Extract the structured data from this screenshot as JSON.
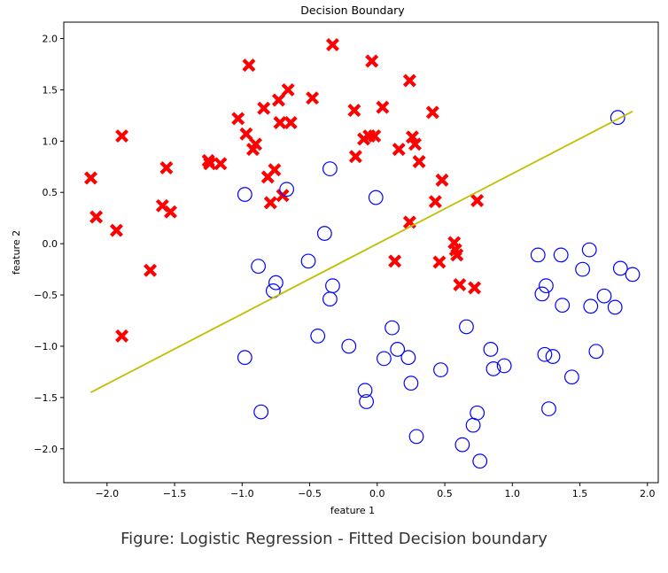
{
  "caption": "Figure: Logistic Regression - Fitted Decision boundary",
  "chart_data": {
    "type": "scatter",
    "title": "Decision Boundary",
    "xlabel": "feature 1",
    "ylabel": "feature 2",
    "xlim": [
      -2.32,
      2.08
    ],
    "ylim": [
      -2.33,
      2.16
    ],
    "xticks": [
      -2.0,
      -1.5,
      -1.0,
      -0.5,
      0.0,
      0.5,
      1.0,
      1.5,
      2.0
    ],
    "yticks": [
      -2.0,
      -1.5,
      -1.0,
      -0.5,
      0.0,
      0.5,
      1.0,
      1.5,
      2.0
    ],
    "xtick_labels": [
      "−2.0",
      "−1.5",
      "−1.0",
      "−0.5",
      "0.0",
      "0.5",
      "1.0",
      "1.5",
      "2.0"
    ],
    "ytick_labels": [
      "−2.0",
      "−1.5",
      "−1.0",
      "−0.5",
      "0.0",
      "0.5",
      "1.0",
      "1.5",
      "2.0"
    ],
    "grid": false,
    "series": [
      {
        "marker": "x",
        "color": "#ff0000",
        "points": [
          [
            -2.12,
            0.64
          ],
          [
            -2.08,
            0.26
          ],
          [
            -1.93,
            0.13
          ],
          [
            -1.89,
            1.05
          ],
          [
            -1.89,
            -0.9
          ],
          [
            -1.68,
            -0.26
          ],
          [
            -1.59,
            0.37
          ],
          [
            -1.56,
            0.74
          ],
          [
            -1.53,
            0.31
          ],
          [
            -1.25,
            0.81
          ],
          [
            -1.24,
            0.78
          ],
          [
            -1.16,
            0.78
          ],
          [
            -1.03,
            1.22
          ],
          [
            -0.97,
            1.07
          ],
          [
            -0.95,
            1.74
          ],
          [
            -0.92,
            0.92
          ],
          [
            -0.9,
            0.97
          ],
          [
            -0.84,
            1.32
          ],
          [
            -0.81,
            0.65
          ],
          [
            -0.79,
            0.4
          ],
          [
            -0.76,
            0.72
          ],
          [
            -0.73,
            1.4
          ],
          [
            -0.72,
            1.18
          ],
          [
            -0.7,
            0.47
          ],
          [
            -0.66,
            1.5
          ],
          [
            -0.64,
            1.18
          ],
          [
            -0.48,
            1.42
          ],
          [
            -0.33,
            1.94
          ],
          [
            -0.17,
            1.3
          ],
          [
            -0.16,
            0.85
          ],
          [
            -0.1,
            1.02
          ],
          [
            -0.06,
            1.05
          ],
          [
            -0.04,
            1.78
          ],
          [
            -0.02,
            1.05
          ],
          [
            0.04,
            1.33
          ],
          [
            0.13,
            -0.17
          ],
          [
            0.16,
            0.92
          ],
          [
            0.24,
            0.21
          ],
          [
            0.24,
            1.59
          ],
          [
            0.26,
            1.04
          ],
          [
            0.28,
            0.97
          ],
          [
            0.31,
            0.8
          ],
          [
            0.41,
            1.28
          ],
          [
            0.43,
            0.41
          ],
          [
            0.46,
            -0.18
          ],
          [
            0.48,
            0.62
          ],
          [
            0.57,
            0.01
          ],
          [
            0.58,
            -0.06
          ],
          [
            0.59,
            -0.11
          ],
          [
            0.61,
            -0.4
          ],
          [
            0.72,
            -0.43
          ],
          [
            0.74,
            0.42
          ]
        ]
      },
      {
        "marker": "o",
        "color": "#0000ff",
        "points": [
          [
            -0.98,
            0.48
          ],
          [
            -0.98,
            -1.11
          ],
          [
            -0.88,
            -0.22
          ],
          [
            -0.86,
            -1.64
          ],
          [
            -0.77,
            -0.46
          ],
          [
            -0.75,
            -0.38
          ],
          [
            -0.67,
            0.53
          ],
          [
            -0.51,
            -0.17
          ],
          [
            -0.44,
            -0.9
          ],
          [
            -0.39,
            0.1
          ],
          [
            -0.35,
            0.73
          ],
          [
            -0.35,
            -0.54
          ],
          [
            -0.33,
            -0.41
          ],
          [
            -0.21,
            -1.0
          ],
          [
            -0.09,
            -1.43
          ],
          [
            -0.08,
            -1.54
          ],
          [
            -0.01,
            0.45
          ],
          [
            0.05,
            -1.12
          ],
          [
            0.11,
            -0.82
          ],
          [
            0.15,
            -1.03
          ],
          [
            0.23,
            -1.11
          ],
          [
            0.25,
            -1.36
          ],
          [
            0.29,
            -1.88
          ],
          [
            0.47,
            -1.23
          ],
          [
            0.63,
            -1.96
          ],
          [
            0.66,
            -0.81
          ],
          [
            0.71,
            -1.77
          ],
          [
            0.74,
            -1.65
          ],
          [
            0.76,
            -2.12
          ],
          [
            0.84,
            -1.03
          ],
          [
            0.86,
            -1.22
          ],
          [
            0.94,
            -1.19
          ],
          [
            1.19,
            -0.11
          ],
          [
            1.22,
            -0.49
          ],
          [
            1.24,
            -1.08
          ],
          [
            1.25,
            -0.41
          ],
          [
            1.27,
            -1.61
          ],
          [
            1.3,
            -1.1
          ],
          [
            1.36,
            -0.11
          ],
          [
            1.37,
            -0.6
          ],
          [
            1.44,
            -1.3
          ],
          [
            1.52,
            -0.25
          ],
          [
            1.57,
            -0.06
          ],
          [
            1.58,
            -0.61
          ],
          [
            1.62,
            -1.05
          ],
          [
            1.68,
            -0.51
          ],
          [
            1.76,
            -0.62
          ],
          [
            1.78,
            1.23
          ],
          [
            1.8,
            -0.24
          ],
          [
            1.89,
            -0.3
          ]
        ]
      }
    ],
    "boundary": {
      "color": "#bfbf00",
      "x": [
        -2.12,
        1.89
      ],
      "y": [
        -1.45,
        1.29
      ]
    }
  }
}
